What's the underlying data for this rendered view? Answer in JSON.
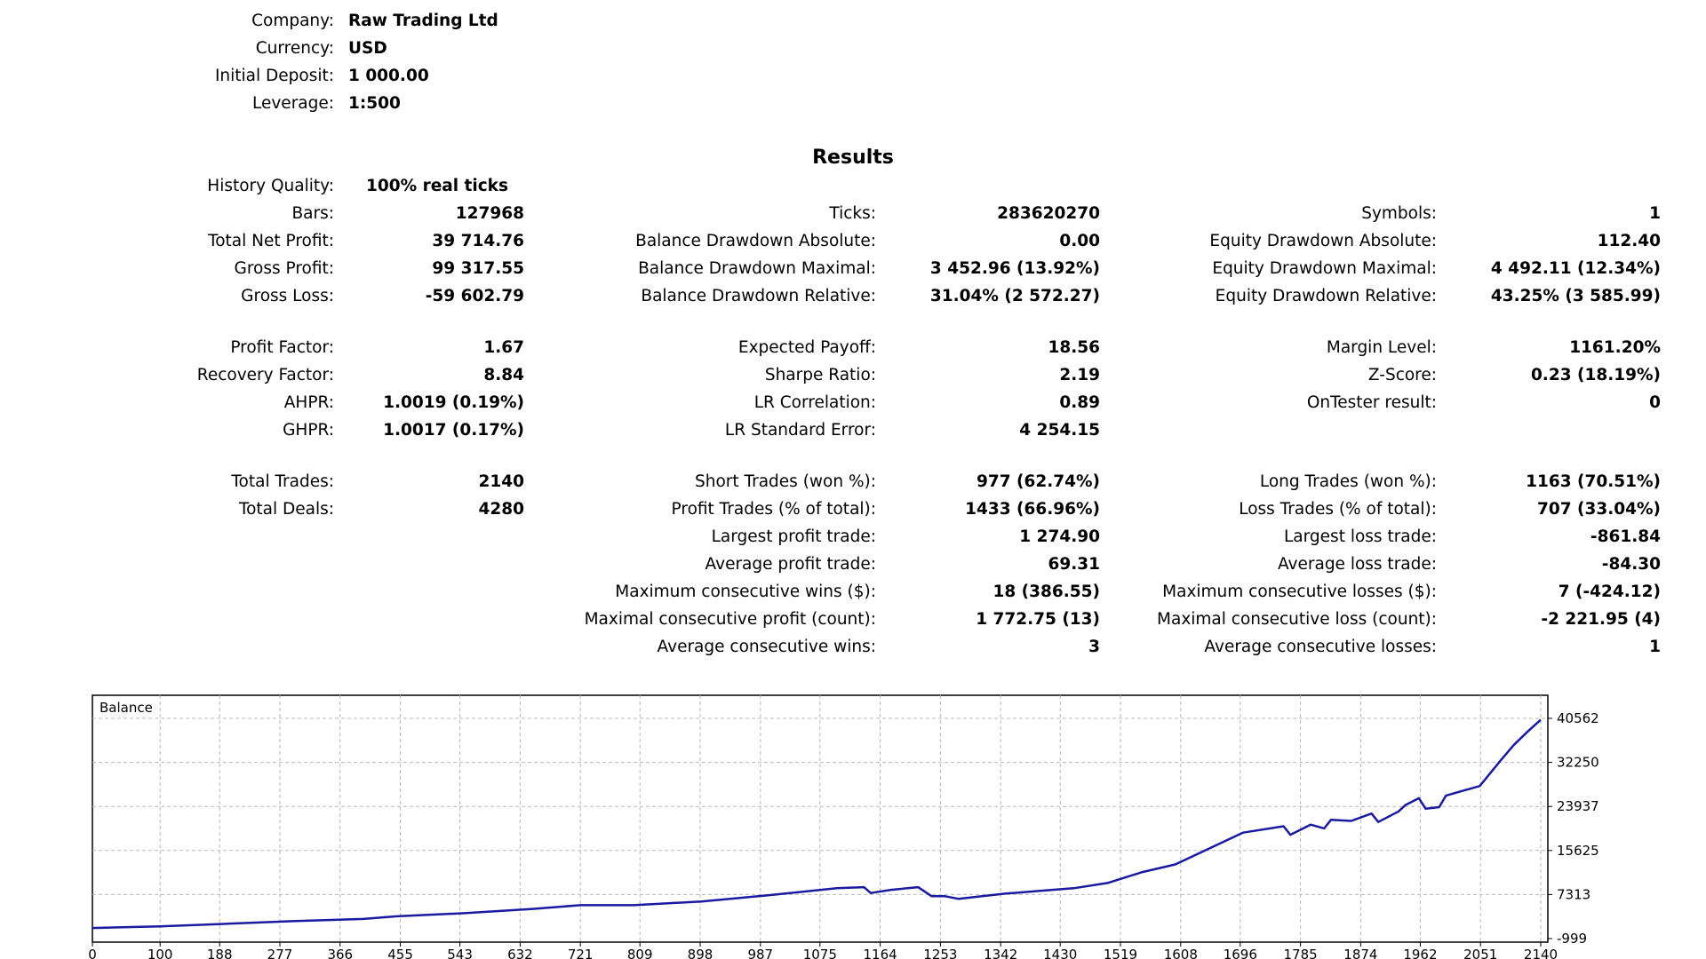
{
  "header": [
    {
      "label": "Company:",
      "value": "Raw Trading Ltd"
    },
    {
      "label": "Currency:",
      "value": "USD"
    },
    {
      "label": "Initial Deposit:",
      "value": "1 000.00"
    },
    {
      "label": "Leverage:",
      "value": "1:500"
    }
  ],
  "results_title": "Results",
  "history_quality": {
    "label": "History Quality:",
    "value": "100% real ticks"
  },
  "col1": [
    [
      {
        "label": "Bars:",
        "value": "127968"
      },
      {
        "label": "Total Net Profit:",
        "value": "39 714.76"
      },
      {
        "label": "Gross Profit:",
        "value": "99 317.55"
      },
      {
        "label": "Gross Loss:",
        "value": "-59 602.79"
      }
    ],
    [
      {
        "label": "Profit Factor:",
        "value": "1.67"
      },
      {
        "label": "Recovery Factor:",
        "value": "8.84"
      },
      {
        "label": "AHPR:",
        "value": "1.0019 (0.19%)"
      },
      {
        "label": "GHPR:",
        "value": "1.0017 (0.17%)"
      }
    ],
    [
      {
        "label": "Total Trades:",
        "value": "2140"
      },
      {
        "label": "Total Deals:",
        "value": "4280"
      }
    ]
  ],
  "col2": [
    [
      {
        "label": "Ticks:",
        "value": "283620270"
      },
      {
        "label": "Balance Drawdown Absolute:",
        "value": "0.00"
      },
      {
        "label": "Balance Drawdown Maximal:",
        "value": "3 452.96 (13.92%)"
      },
      {
        "label": "Balance Drawdown Relative:",
        "value": "31.04% (2 572.27)"
      }
    ],
    [
      {
        "label": "Expected Payoff:",
        "value": "18.56"
      },
      {
        "label": "Sharpe Ratio:",
        "value": "2.19"
      },
      {
        "label": "LR Correlation:",
        "value": "0.89"
      },
      {
        "label": "LR Standard Error:",
        "value": "4 254.15"
      }
    ],
    [
      {
        "label": "Short Trades (won %):",
        "value": "977 (62.74%)"
      },
      {
        "label": "Profit Trades (% of total):",
        "value": "1433 (66.96%)"
      },
      {
        "label": "Largest profit trade:",
        "value": "1 274.90"
      },
      {
        "label": "Average profit trade:",
        "value": "69.31"
      },
      {
        "label": "Maximum consecutive wins ($):",
        "value": "18 (386.55)"
      },
      {
        "label": "Maximal consecutive profit (count):",
        "value": "1 772.75 (13)"
      },
      {
        "label": "Average consecutive wins:",
        "value": "3"
      }
    ]
  ],
  "col3": [
    [
      {
        "label": "Symbols:",
        "value": "1"
      },
      {
        "label": "Equity Drawdown Absolute:",
        "value": "112.40"
      },
      {
        "label": "Equity Drawdown Maximal:",
        "value": "4 492.11 (12.34%)"
      },
      {
        "label": "Equity Drawdown Relative:",
        "value": "43.25% (3 585.99)"
      }
    ],
    [
      {
        "label": "Margin Level:",
        "value": "1161.20%"
      },
      {
        "label": "Z-Score:",
        "value": "0.23 (18.19%)"
      },
      {
        "label": "OnTester result:",
        "value": "0"
      }
    ],
    [
      {
        "label": "Long Trades (won %):",
        "value": "1163 (70.51%)"
      },
      {
        "label": "Loss Trades (% of total):",
        "value": "707 (33.04%)"
      },
      {
        "label": "Largest loss trade:",
        "value": "-861.84"
      },
      {
        "label": "Average loss trade:",
        "value": "-84.30"
      },
      {
        "label": "Maximum consecutive losses ($):",
        "value": "7 (-424.12)"
      },
      {
        "label": "Maximal consecutive loss (count):",
        "value": "-2 221.95 (4)"
      },
      {
        "label": "Average consecutive losses:",
        "value": "1"
      }
    ]
  ],
  "chart_data": {
    "type": "line",
    "title": "Balance",
    "xlabel": "",
    "ylabel": "",
    "x_ticks": [
      "0",
      "100",
      "188",
      "277",
      "366",
      "455",
      "543",
      "632",
      "721",
      "809",
      "898",
      "987",
      "1075",
      "1164",
      "1253",
      "1342",
      "1430",
      "1519",
      "1608",
      "1696",
      "1785",
      "1874",
      "1962",
      "2051",
      "2140"
    ],
    "y_ticks": [
      "40562",
      "32250",
      "23937",
      "15625",
      "7313",
      "-999"
    ],
    "xlim": [
      0,
      2140
    ],
    "ylim": [
      -999,
      40562
    ],
    "grid": true,
    "line_color": "#1a1aa0",
    "series": [
      {
        "x": [
          0,
          100,
          200,
          300,
          400,
          450,
          550,
          650,
          721,
          800,
          900,
          1000,
          1100,
          1140,
          1150,
          1180,
          1220,
          1240,
          1260,
          1280,
          1300,
          1350,
          1400,
          1450,
          1500,
          1550,
          1600,
          1650,
          1700,
          1760,
          1770,
          1800,
          1820,
          1830,
          1860,
          1890,
          1900,
          1930,
          1940,
          1960,
          1970,
          1990,
          2000,
          2050,
          2080,
          2100,
          2120,
          2140
        ],
        "y": [
          1000,
          1300,
          1800,
          2300,
          2700,
          3200,
          3800,
          4600,
          5300,
          5300,
          6000,
          7200,
          8500,
          8700,
          7600,
          8200,
          8700,
          7000,
          7000,
          6500,
          6800,
          7500,
          8000,
          8500,
          9500,
          11500,
          13000,
          16000,
          19000,
          20200,
          18600,
          20500,
          19800,
          21400,
          21200,
          22600,
          21000,
          23000,
          24200,
          25500,
          23500,
          23800,
          26000,
          27800,
          32500,
          35500,
          38000,
          40300
        ]
      }
    ]
  }
}
